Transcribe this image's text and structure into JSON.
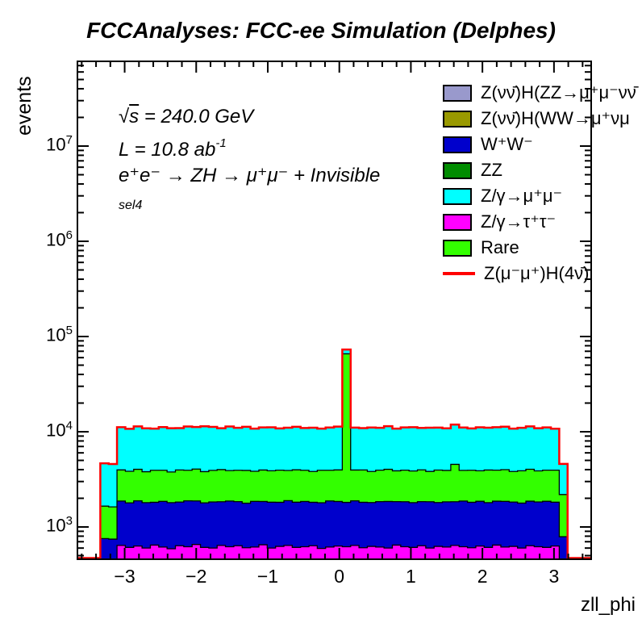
{
  "title": "FCCAnalyses: FCC-ee Simulation (Delphes)",
  "annotations": {
    "sqrt_s": {
      "radical": "√",
      "arg": "s",
      "rest": " = 240.0 GeV"
    },
    "lumi": {
      "text": "L = 10.8 ab",
      "sup": "-1"
    },
    "process": "e⁺e⁻ → ZH → μ⁺μ⁻ + Invisible",
    "selection": "sel4"
  },
  "legend": {
    "items": [
      {
        "label": "Z(νν̄)H(ZZ→μ⁺μ⁻νν̄",
        "color": "#9999cc",
        "style": "fill"
      },
      {
        "label": "Z(νν̄)H(WW→μ⁺νμ",
        "color": "#999900",
        "style": "fill"
      },
      {
        "label": "W⁺W⁻",
        "color": "#0000cc",
        "style": "fill"
      },
      {
        "label": "ZZ",
        "color": "#008c00",
        "style": "fill"
      },
      {
        "label": "Z/γ→μ⁺μ⁻",
        "color": "#00ffff",
        "style": "fill"
      },
      {
        "label": "Z/γ→τ⁺τ⁻",
        "color": "#ff00ff",
        "style": "fill"
      },
      {
        "label": "Rare",
        "color": "#33ff00",
        "style": "fill"
      },
      {
        "label": "Z(μ⁻μ⁺)H(4ν̄)",
        "color": "#ff0000",
        "style": "line"
      }
    ]
  },
  "chart_data": {
    "type": "bar",
    "subtype": "stacked-step-histogram-logy",
    "title": "FCCAnalyses: FCC-ee Simulation (Delphes)",
    "xlabel": "zll_phi",
    "ylabel": "events",
    "log_y": true,
    "xlim": [
      -3.66,
      3.52
    ],
    "ylim": [
      458,
      77600000
    ],
    "x_ticks": [
      -3,
      -2,
      -1,
      0,
      1,
      2,
      3
    ],
    "x_minor_step": 0.2,
    "y_tick_exponents": [
      3,
      4,
      5,
      6,
      7
    ],
    "grid": false,
    "legend_position": "top-right",
    "bins": {
      "start": -3.34,
      "width": 0.11661,
      "count": 56
    },
    "series": [
      {
        "name": "Z/γ→τ⁺τ⁻",
        "color": "#ff00ff",
        "values": [
          255,
          250,
          640,
          610,
          630,
          600,
          645,
          615,
          590,
          635,
          620,
          655,
          610,
          600,
          640,
          620,
          635,
          605,
          615,
          650,
          600,
          625,
          640,
          610,
          620,
          635,
          595,
          615,
          630,
          620,
          640,
          605,
          625,
          615,
          600,
          645,
          620,
          610,
          635,
          600,
          625,
          615,
          640,
          620,
          605,
          630,
          610,
          645,
          615,
          625,
          600,
          635,
          620,
          610,
          630,
          270
        ]
      },
      {
        "name": "W⁺W⁻",
        "color": "#0000cc",
        "values": [
          500,
          495,
          1230,
          1180,
          1250,
          1200,
          1170,
          1240,
          1210,
          1190,
          1260,
          1220,
          1180,
          1230,
          1200,
          1250,
          1210,
          1170,
          1240,
          1200,
          1220,
          1190,
          1250,
          1210,
          1230,
          1180,
          1200,
          1260,
          1220,
          1190,
          1240,
          1210,
          1180,
          1230,
          1250,
          1200,
          1220,
          1190,
          1210,
          1240,
          1180,
          1220,
          1200,
          1250,
          1210,
          1230,
          1190,
          1220,
          1240,
          1200,
          1180,
          1230,
          1210,
          1250,
          1190,
          520
        ]
      },
      {
        "name": "Rare",
        "color": "#33ff00",
        "values": [
          900,
          880,
          2100,
          2050,
          2150,
          2000,
          2120,
          2080,
          1980,
          2140,
          2060,
          2180,
          2020,
          2100,
          2160,
          2040,
          2090,
          2150,
          1990,
          2110,
          2070,
          2130,
          2030,
          2160,
          2090,
          2010,
          2140,
          2060,
          2120,
          64000,
          2080,
          2150,
          2020,
          2100,
          2180,
          2040,
          2110,
          2070,
          2130,
          1990,
          2150,
          2090,
          2700,
          2060,
          2120,
          2030,
          2160,
          2080,
          2140,
          2000,
          2110,
          2170,
          2050,
          2090,
          2130,
          1400
        ]
      },
      {
        "name": "Z/γ→μ⁺μ⁻",
        "color": "#00ffff",
        "values": [
          3000,
          2950,
          7200,
          6900,
          7350,
          7050,
          6850,
          7250,
          7100,
          6950,
          7400,
          7150,
          7600,
          7300,
          6900,
          7450,
          7050,
          7350,
          6950,
          7150,
          7250,
          6900,
          7100,
          7300,
          7000,
          7200,
          6850,
          7150,
          7350,
          7200,
          7100,
          6950,
          7250,
          7050,
          7400,
          6900,
          7150,
          7300,
          7000,
          7200,
          7100,
          6950,
          7350,
          7150,
          6900,
          7250,
          7050,
          7200,
          7300,
          6950,
          7100,
          7350,
          7000,
          7150,
          6800,
          2400
        ]
      }
    ],
    "signal": {
      "name": "Z(μ⁻μ⁺)H(4ν̄)",
      "color": "#ff0000",
      "follows_stack_total": true
    }
  }
}
